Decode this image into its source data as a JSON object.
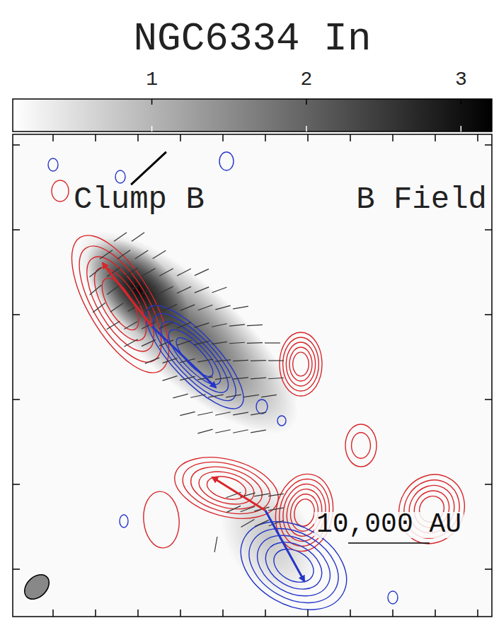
{
  "chart_data": {
    "type": "polarization_map",
    "title": "NGC6334 In",
    "annotations": [
      "Clump B",
      "B Field"
    ],
    "xlim": [
      0,
      67.7
    ],
    "ylim": [
      0,
      68.2
    ],
    "xticks": [
      5.7,
      11.7,
      17.7,
      23.7,
      29.7,
      35.7,
      41.7,
      47.7,
      53.7,
      59.7,
      65.7
    ],
    "yticks": [
      6.7,
      18.7,
      30.7,
      42.7,
      54.7,
      66.7
    ],
    "tick_labels": false,
    "colorbar": {
      "range": [
        0.1,
        3.2
      ],
      "ticks": [
        1,
        2,
        3
      ]
    },
    "emission": [
      {
        "x": 24.7,
        "y": 40.2,
        "major": 20,
        "minor": 7,
        "pa": -42,
        "peak": 2.2
      },
      {
        "x": 17.7,
        "y": 46.2,
        "major": 9,
        "minor": 5,
        "pa": -45,
        "peak": 3.1
      },
      {
        "x": 36.2,
        "y": 11.2,
        "major": 9,
        "minor": 6,
        "pa": -60,
        "peak": 0.8
      }
    ],
    "contours": [
      {
        "color": "#d8262a",
        "lobes": [
          {
            "x": 15.2,
            "y": 44.2,
            "major": 11,
            "minor": 4.5,
            "pa": -59,
            "levels": 5
          },
          {
            "x": 40.7,
            "y": 35.7,
            "major": 4.5,
            "minor": 3,
            "pa": 90,
            "levels": 5
          },
          {
            "x": 30.2,
            "y": 18.2,
            "major": 7.5,
            "minor": 4,
            "pa": -15,
            "levels": 5
          },
          {
            "x": 41.2,
            "y": 14.7,
            "major": 5.5,
            "minor": 4,
            "pa": 80,
            "levels": 6
          },
          {
            "x": 59.2,
            "y": 15.2,
            "major": 5,
            "minor": 4.5,
            "pa": 60,
            "levels": 5
          },
          {
            "x": 49.2,
            "y": 24.2,
            "major": 3,
            "minor": 2.2,
            "pa": 90,
            "levels": 2
          },
          {
            "x": 21.0,
            "y": 13.7,
            "major": 4,
            "minor": 2.5,
            "pa": 95,
            "levels": 1
          },
          {
            "x": 6.7,
            "y": 60.2,
            "major": 1.5,
            "minor": 1.2,
            "pa": 90,
            "levels": 1
          }
        ]
      },
      {
        "color": "#2436c8",
        "lobes": [
          {
            "x": 25.7,
            "y": 36.7,
            "major": 9.5,
            "minor": 3.2,
            "pa": -47,
            "levels": 5
          },
          {
            "x": 39.7,
            "y": 7.2,
            "major": 8,
            "minor": 5.5,
            "pa": -30,
            "levels": 5
          },
          {
            "x": 30.2,
            "y": 64.4,
            "major": 1.3,
            "minor": 1.0,
            "pa": 90,
            "levels": 1
          },
          {
            "x": 15.2,
            "y": 62.2,
            "major": 0.9,
            "minor": 0.7,
            "pa": 90,
            "levels": 1
          },
          {
            "x": 5.7,
            "y": 63.9,
            "major": 0.9,
            "minor": 0.7,
            "pa": 90,
            "levels": 1
          },
          {
            "x": 35.2,
            "y": 29.7,
            "major": 1.0,
            "minor": 0.8,
            "pa": 90,
            "levels": 1
          },
          {
            "x": 38.0,
            "y": 27.7,
            "major": 0.7,
            "minor": 0.6,
            "pa": 90,
            "levels": 1
          },
          {
            "x": 15.7,
            "y": 13.5,
            "major": 0.9,
            "minor": 0.6,
            "pa": 90,
            "levels": 1
          },
          {
            "x": 53.7,
            "y": 2.7,
            "major": 0.9,
            "minor": 0.7,
            "pa": 90,
            "levels": 1
          }
        ]
      }
    ],
    "outflows": [
      {
        "origin": [
          19.7,
          41.0
        ],
        "red": [
          12.7,
          50.0
        ],
        "blue": [
          28.7,
          32.4
        ]
      },
      {
        "origin": [
          35.7,
          15.0
        ],
        "red": [
          28.2,
          19.7
        ],
        "blue": [
          41.2,
          5.0
        ]
      }
    ],
    "vectors": [
      {
        "y": 53.7,
        "x": [
          15.2,
          17.7
        ],
        "pa": [
          35,
          35
        ]
      },
      {
        "y": 51.2,
        "x": [
          13.2,
          15.7,
          18.2,
          20.7
        ],
        "pa": [
          35,
          35,
          33,
          32
        ]
      },
      {
        "y": 48.7,
        "x": [
          11.7,
          14.2,
          16.7,
          19.2,
          21.7,
          24.2,
          26.7
        ],
        "pa": [
          38,
          35,
          33,
          30,
          28,
          27,
          25
        ]
      },
      {
        "y": 46.2,
        "x": [
          11.7,
          14.2,
          16.7,
          19.2,
          21.7,
          24.2,
          26.7,
          29.2
        ],
        "pa": [
          40,
          36,
          32,
          30,
          27,
          25,
          22,
          20
        ]
      },
      {
        "y": 43.7,
        "x": [
          12.2,
          14.7,
          17.2,
          19.7,
          22.2,
          24.7,
          27.2,
          29.7,
          32.2
        ],
        "pa": [
          38,
          34,
          30,
          28,
          25,
          22,
          20,
          15,
          10
        ]
      },
      {
        "y": 41.2,
        "x": [
          14.2,
          16.7,
          19.2,
          21.7,
          24.2,
          26.7,
          29.2,
          31.7,
          34.2
        ],
        "pa": [
          32,
          30,
          27,
          25,
          22,
          18,
          12,
          6,
          3
        ]
      },
      {
        "y": 38.7,
        "x": [
          16.7,
          19.2,
          21.7,
          24.2,
          26.7,
          29.2,
          31.7,
          34.2,
          36.7
        ],
        "pa": [
          28,
          25,
          22,
          18,
          14,
          8,
          4,
          2,
          0
        ]
      },
      {
        "y": 36.2,
        "x": [
          19.7,
          22.2,
          24.7,
          27.2,
          29.7,
          32.2,
          34.7,
          37.2
        ],
        "pa": [
          22,
          18,
          14,
          10,
          6,
          3,
          2,
          0
        ]
      },
      {
        "y": 33.7,
        "x": [
          22.2,
          24.7,
          27.2,
          29.7,
          32.2,
          34.7,
          37.2
        ],
        "pa": [
          18,
          14,
          10,
          8,
          6,
          5,
          4
        ]
      },
      {
        "y": 31.2,
        "x": [
          23.7,
          26.2,
          28.7,
          31.2,
          33.7,
          36.2
        ],
        "pa": [
          15,
          12,
          10,
          10,
          8,
          8
        ]
      },
      {
        "y": 28.7,
        "x": [
          24.7,
          27.2,
          29.7,
          32.2,
          34.7
        ],
        "pa": [
          14,
          12,
          12,
          10,
          10
        ]
      },
      {
        "y": 26.2,
        "x": [
          27.2,
          29.7,
          32.2,
          34.7
        ],
        "pa": [
          15,
          12,
          12,
          10
        ]
      },
      {
        "y": 17.2,
        "x": [
          31.2,
          33.2,
          35.2,
          37.2
        ],
        "pa": [
          20,
          15,
          10,
          8
        ]
      },
      {
        "y": 15.2,
        "x": [
          31.2,
          33.2,
          35.2,
          37.2
        ],
        "pa": [
          25,
          20,
          15,
          10
        ]
      },
      {
        "y": 13.2,
        "x": [
          33.2,
          35.2,
          37.2
        ],
        "pa": [
          30,
          25,
          20
        ]
      },
      {
        "y": 10.2,
        "x": [
          28.7
        ],
        "pa": [
          80
        ]
      }
    ],
    "reference_vector": {
      "x": 19.2,
      "y": 63.4,
      "pa": 43
    },
    "beam": {
      "x": 3.4,
      "y": 4.2,
      "major": 2.0,
      "minor": 1.4,
      "pa": 45
    },
    "scale_bar": {
      "label": "10,000 AU",
      "x0": 47.4,
      "x1": 58.9,
      "y": 10.4
    }
  }
}
